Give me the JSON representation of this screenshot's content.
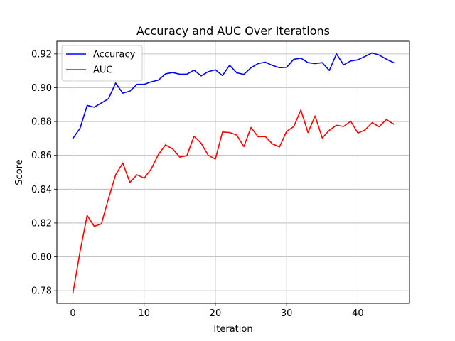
{
  "chart_data": {
    "type": "line",
    "title": "Accuracy and AUC Over Iterations",
    "xlabel": "Iteration",
    "ylabel": "Score",
    "xlim": [
      -2.25,
      47.25
    ],
    "ylim": [
      0.7725,
      0.9275
    ],
    "x_ticks": [
      0,
      10,
      20,
      30,
      40
    ],
    "y_ticks": [
      0.78,
      0.8,
      0.82,
      0.84,
      0.86,
      0.88,
      0.9,
      0.92
    ],
    "y_tick_labels": [
      "0.78",
      "0.80",
      "0.82",
      "0.84",
      "0.86",
      "0.88",
      "0.90",
      "0.92"
    ],
    "grid": true,
    "legend_position": "upper-left",
    "x": [
      0,
      1,
      2,
      3,
      4,
      5,
      6,
      7,
      8,
      9,
      10,
      11,
      12,
      13,
      14,
      15,
      16,
      17,
      18,
      19,
      20,
      21,
      22,
      23,
      24,
      25,
      26,
      27,
      28,
      29,
      30,
      31,
      32,
      33,
      34,
      35,
      36,
      37,
      38,
      39,
      40,
      41,
      42,
      43,
      44,
      45
    ],
    "series": [
      {
        "name": "Accuracy",
        "color": "#0000ff",
        "values": [
          0.87,
          0.876,
          0.8895,
          0.8885,
          0.891,
          0.8935,
          0.9028,
          0.8968,
          0.898,
          0.902,
          0.902,
          0.9035,
          0.9045,
          0.9082,
          0.909,
          0.908,
          0.908,
          0.9104,
          0.907,
          0.9095,
          0.9106,
          0.9072,
          0.9133,
          0.9088,
          0.9079,
          0.9118,
          0.9143,
          0.9151,
          0.9132,
          0.9118,
          0.9121,
          0.9168,
          0.9175,
          0.9148,
          0.9143,
          0.9148,
          0.9102,
          0.92,
          0.9135,
          0.9158,
          0.9165,
          0.9185,
          0.9206,
          0.9193,
          0.9169,
          0.9149
        ]
      },
      {
        "name": "AUC",
        "color": "#ff0000",
        "values": [
          0.7785,
          0.803,
          0.8245,
          0.818,
          0.8195,
          0.8345,
          0.8485,
          0.8555,
          0.844,
          0.8485,
          0.8465,
          0.852,
          0.8605,
          0.8662,
          0.8638,
          0.859,
          0.8598,
          0.8713,
          0.8672,
          0.86,
          0.8578,
          0.8738,
          0.8735,
          0.872,
          0.8652,
          0.8765,
          0.871,
          0.8712,
          0.8668,
          0.865,
          0.8742,
          0.877,
          0.8868,
          0.8735,
          0.8833,
          0.8703,
          0.8748,
          0.8778,
          0.8771,
          0.8802,
          0.8732,
          0.875,
          0.8793,
          0.8769,
          0.8812,
          0.8785
        ]
      }
    ]
  }
}
